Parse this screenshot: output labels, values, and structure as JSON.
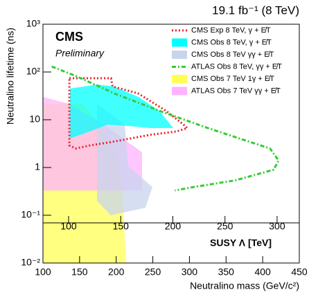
{
  "chart_data": {
    "type": "contour",
    "title": "19.1 fb⁻¹ (8 TeV)",
    "experiment": "CMS",
    "status": "Preliminary",
    "xlabel": "Neutralino mass (GeV/c²)",
    "ylabel": "Neutralino lifetime (ns)",
    "x2label": "SUSY Λ [TeV]",
    "xlim": [
      100,
      450
    ],
    "xticks": [
      100,
      150,
      200,
      250,
      300,
      350,
      400,
      450
    ],
    "x2lim": [
      75.4,
      321.3
    ],
    "x2ticks": [
      100,
      150,
      200,
      250,
      300
    ],
    "ylim": [
      0.01,
      1000
    ],
    "ylog": true,
    "yticks": [
      {
        "value": 0.01,
        "label": "10⁻²"
      },
      {
        "value": 0.1,
        "label": "10⁻¹"
      },
      1,
      10,
      {
        "value": 100,
        "label": "10²"
      },
      {
        "value": 1000,
        "label": "10³"
      }
    ],
    "series": [
      {
        "name": "CMS Exp 8 TeV,  γ + E̸T",
        "color": "#e8202a",
        "style": "dotted",
        "closed": true,
        "filled": false,
        "x": [
          136,
          193,
          195,
          230,
          268,
          292,
          297,
          283,
          245,
          193,
          164,
          145,
          136
        ],
        "y": [
          74,
          74,
          50,
          35.5,
          15.4,
          7.9,
          6.7,
          5.7,
          4.8,
          3.4,
          2.9,
          2.5,
          2.9
        ]
      },
      {
        "name": "CMS Obs 8 TeV, γ + E̸T",
        "color": "#00ffff",
        "style": "solid",
        "closed": true,
        "filled": true,
        "x": [
          136.9,
          173.8,
          197.4,
          230.6,
          258.9,
          277.9,
          244.8,
          216.4,
          188,
          164.3,
          136.9
        ],
        "y": [
          44.9,
          54.8,
          49.6,
          30,
          15.4,
          6.7,
          6.7,
          7.4,
          7.9,
          5.7,
          4.06
        ]
      },
      {
        "name": "CMS Obs 8 TeV γγ + E̸T",
        "color": "#c8d4ee",
        "style": "solid",
        "closed": true,
        "filled": true,
        "x": [
          173.8,
          211.6,
          216.4,
          249.5,
          240,
          192.7,
          173.8
        ],
        "y": [
          21.5,
          7.9,
          1.07,
          0.39,
          0.144,
          0.1,
          0.2
        ]
      },
      {
        "name": "ATLAS Obs 8 TeV, γγ + E̸T",
        "color": "#33cc33",
        "style": "dashdot",
        "closed": false,
        "filled": false,
        "x": [
          112,
          145.4,
          197.4,
          258.9,
          325,
          410,
          421.7,
          415,
          363,
          306,
          280
        ],
        "y": [
          130,
          81.9,
          35.5,
          15.4,
          6.7,
          2.5,
          1.4,
          0.9,
          0.54,
          0.39,
          0.33
        ]
      },
      {
        "name": "CMS Obs 7 TeV 1γ + E̸T",
        "color": "#ffff55",
        "style": "solid",
        "closed": true,
        "filled": true,
        "x": [
          100,
          154.9,
          192.7,
          206.9,
          213.5,
          100
        ],
        "y": [
          21.5,
          21.5,
          4.06,
          1.07,
          0.01,
          0.01
        ]
      },
      {
        "name": "ATLAS Obs 7 TeV γγ + E̸T",
        "color": "#ffb3ff",
        "style": "solid",
        "closed": true,
        "filled": true,
        "x": [
          100,
          136,
          183.3,
          235.3,
          235.3,
          100
        ],
        "y": [
          30,
          21.5,
          7.9,
          2.08,
          0.33,
          0.33
        ]
      }
    ],
    "draw_order": [
      4,
      5,
      2,
      1,
      0,
      3
    ]
  }
}
